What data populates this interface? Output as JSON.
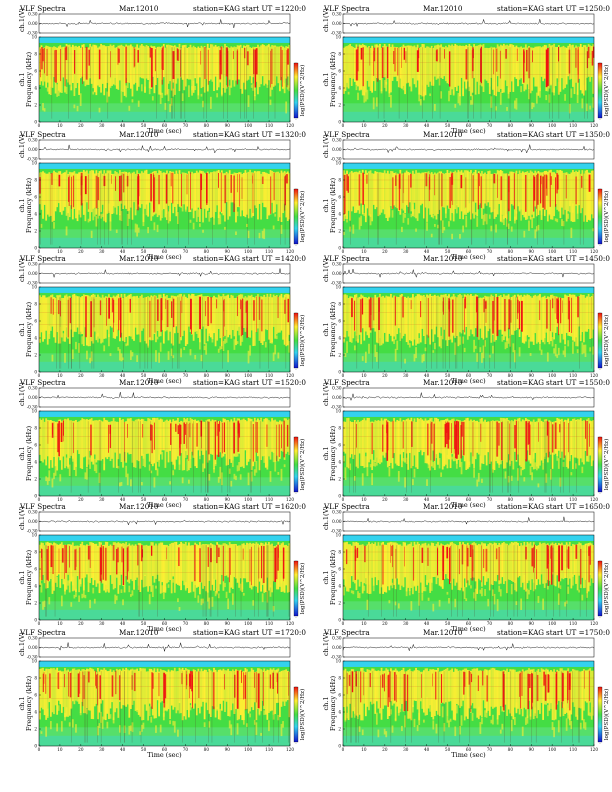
{
  "common": {
    "title": "VLF Spectra",
    "date": "Mar.12010",
    "station": "station=KAG",
    "start_prefix": "start  UT  =",
    "top_ylabel": "ch.1(V)",
    "top_ticks": [
      "0.30",
      "0.00",
      "-0.30"
    ],
    "ylabel_ch": "ch.1",
    "ylabel_freq": "Frequency (kHz)",
    "xlabel": "Time (sec)",
    "colorbar_label": "log(PSD)(V^2/Hz)",
    "colorbar_ticks": [
      "-",
      "-"
    ],
    "colors": {
      "water": "#33d2ee",
      "green": "#44dd44",
      "yellow": "#ffee33",
      "red": "#ee1111",
      "blue": "#1111cc"
    }
  },
  "panels": [
    {
      "start": "1220:0"
    },
    {
      "start": "1250:0"
    },
    {
      "start": "1320:0"
    },
    {
      "start": "1350:0"
    },
    {
      "start": "1420:0"
    },
    {
      "start": "1450:0"
    },
    {
      "start": "1520:0"
    },
    {
      "start": "1550:0"
    },
    {
      "start": "1620:0"
    },
    {
      "start": "1650:0"
    },
    {
      "start": "1720:0"
    },
    {
      "start": "1750:0"
    }
  ],
  "chart_data": {
    "type": "heatmap",
    "title": "VLF Spectra",
    "x": {
      "label": "Time (sec)",
      "range": [
        0,
        120
      ],
      "ticks": [
        0,
        10,
        20,
        30,
        40,
        50,
        60,
        70,
        80,
        90,
        100,
        110,
        120
      ]
    },
    "y": {
      "label": "Frequency (kHz)",
      "range": [
        0,
        10
      ],
      "ticks": [
        0,
        2,
        4,
        6,
        8,
        10
      ]
    },
    "top_trace": {
      "label": "ch.1(V)",
      "range": [
        -0.3,
        0.3
      ],
      "ticks": [
        0.3,
        0.0,
        -0.3
      ]
    },
    "colorbar": {
      "label": "log(PSD)(V^2/Hz)"
    },
    "panels": 12
  }
}
